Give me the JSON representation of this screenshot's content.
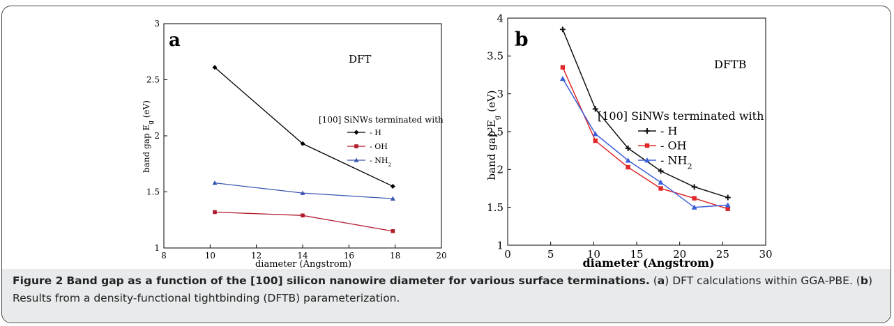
{
  "caption": {
    "label": "Figure 2",
    "title": "Band gap as a function of the [100] silicon nanowire diameter for various surface terminations.",
    "a_letter": "a",
    "a_text": "DFT calculations within GGA-PBE.",
    "b_letter": "b",
    "b_text": "Results from a density-functional tightbinding (DFTB) parameterization."
  },
  "chart_data": [
    {
      "type": "line",
      "panel_label": "a",
      "title": "DFT",
      "legend_title": "[100] SiNWs terminated with",
      "xlabel": "diameter (Angstrom)",
      "ylabel": "band gap E_g (eV)",
      "xlim": [
        8,
        20
      ],
      "ylim": [
        1,
        3
      ],
      "xticks": [
        8,
        10,
        12,
        14,
        16,
        18,
        20
      ],
      "yticks": [
        1,
        1.5,
        2,
        2.5,
        3
      ],
      "ytick_labels": [
        "1",
        "1.5",
        "2",
        "2.5",
        "3"
      ],
      "legend_position": "right",
      "grid": false,
      "series": [
        {
          "name": "- H",
          "color": "#000000",
          "marker": "diamond",
          "x": [
            10.2,
            14,
            17.9
          ],
          "y": [
            2.61,
            1.93,
            1.55
          ]
        },
        {
          "name": "- OH",
          "color": "#b01c2e",
          "marker": "square",
          "x": [
            10.2,
            14,
            17.9
          ],
          "y": [
            1.32,
            1.29,
            1.15
          ]
        },
        {
          "name": "- NH₂",
          "color": "#3a55b0",
          "marker": "triangle",
          "x": [
            10.2,
            14,
            17.9
          ],
          "y": [
            1.58,
            1.49,
            1.44
          ]
        }
      ]
    },
    {
      "type": "line",
      "panel_label": "b",
      "title": "DFTB",
      "legend_title": "[100] SiNWs terminated with",
      "xlabel": "diameter (Angstrom)",
      "ylabel": "band gap E_g (eV)",
      "xlim": [
        0,
        30
      ],
      "ylim": [
        1,
        4
      ],
      "xticks": [
        0,
        5,
        10,
        15,
        20,
        25,
        30
      ],
      "yticks": [
        1,
        1.5,
        2,
        2.5,
        3,
        3.5,
        4
      ],
      "ytick_labels": [
        "1",
        "1.5",
        "2",
        "2.5",
        "3",
        "3.5",
        "4"
      ],
      "legend_position": "right",
      "grid": false,
      "series": [
        {
          "name": "- H",
          "color": "#111111",
          "marker": "plus",
          "x": [
            6.4,
            10.2,
            14,
            17.8,
            21.7,
            25.6
          ],
          "y": [
            3.85,
            2.8,
            2.28,
            1.98,
            1.77,
            1.63
          ]
        },
        {
          "name": "- OH",
          "color": "#e02828",
          "marker": "square",
          "x": [
            6.4,
            10.2,
            14,
            17.8,
            21.7,
            25.6
          ],
          "y": [
            3.35,
            2.38,
            2.03,
            1.75,
            1.62,
            1.48
          ]
        },
        {
          "name": "- NH₂",
          "color": "#3a5ed8",
          "marker": "triangle",
          "x": [
            6.4,
            10.2,
            14,
            17.8,
            21.7,
            25.6
          ],
          "y": [
            3.2,
            2.47,
            2.12,
            1.83,
            1.5,
            1.53
          ]
        }
      ]
    }
  ]
}
